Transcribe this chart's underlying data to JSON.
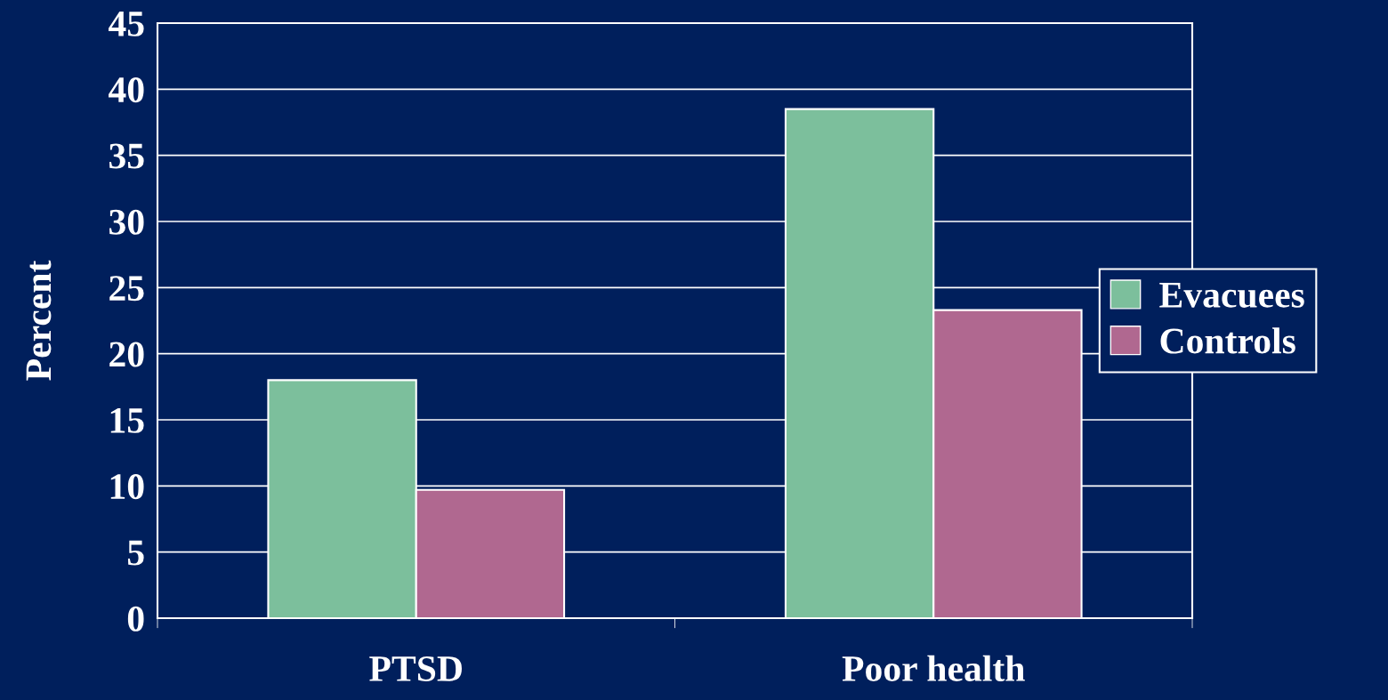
{
  "chart_data": {
    "type": "bar",
    "ylabel": "Percent",
    "categories": [
      "PTSD",
      "Poor health"
    ],
    "series": [
      {
        "name": "Evacuees",
        "color": "#7cbf9c",
        "values": [
          18,
          38.5
        ]
      },
      {
        "name": "Controls",
        "color": "#b06890",
        "values": [
          9.7,
          23.3
        ]
      }
    ],
    "ylim": [
      0,
      45
    ],
    "yticks": [
      0,
      5,
      10,
      15,
      20,
      25,
      30,
      35,
      40,
      45
    ],
    "grid": "y",
    "legend": "right"
  }
}
